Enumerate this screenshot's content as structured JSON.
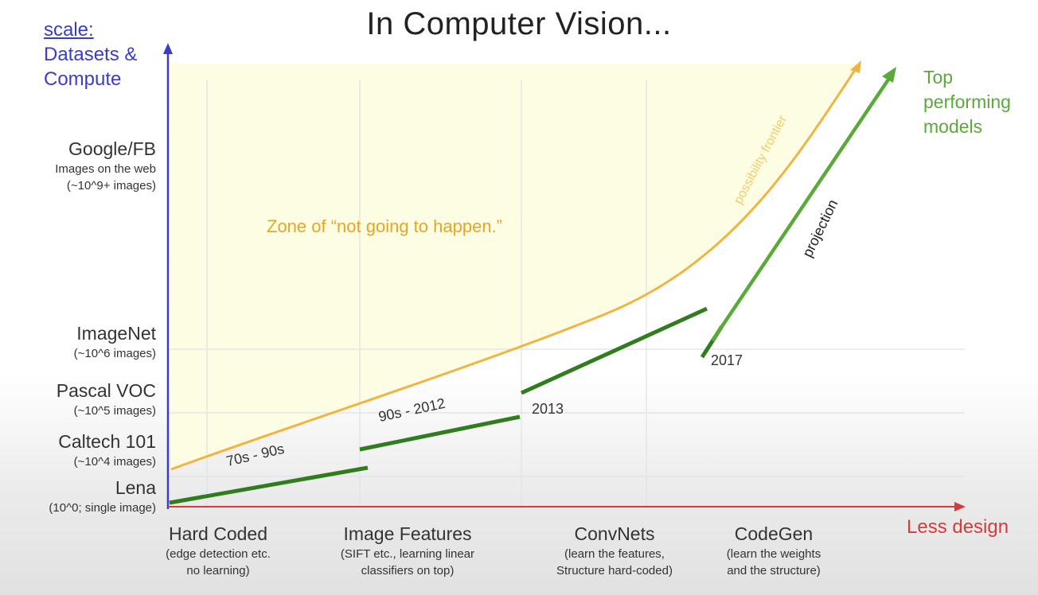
{
  "title": "In Computer Vision...",
  "y_axis": {
    "label_underlined": "scale:",
    "label_lines": [
      "Datasets &",
      "Compute"
    ],
    "ticks": [
      {
        "main": "Google/FB",
        "sub": [
          "Images on the web",
          "(~10^9+ images)"
        ]
      },
      {
        "main": "ImageNet",
        "sub": [
          "(~10^6 images)"
        ]
      },
      {
        "main": "Pascal VOC",
        "sub": [
          "(~10^5 images)"
        ]
      },
      {
        "main": "Caltech 101",
        "sub": [
          "(~10^4 images)"
        ]
      },
      {
        "main": "Lena",
        "sub": [
          "(10^0; single image)"
        ]
      }
    ]
  },
  "x_axis": {
    "label": "Less design",
    "ticks": [
      {
        "main": "Hard Coded",
        "sub": [
          "(edge detection etc.",
          "no learning)"
        ]
      },
      {
        "main": "Image Features",
        "sub": [
          "(SIFT etc., learning linear",
          "classifiers on top)"
        ]
      },
      {
        "main": "ConvNets",
        "sub": [
          "(learn the features,",
          "Structure hard-coded)"
        ]
      },
      {
        "main": "CodeGen",
        "sub": [
          "(learn the weights",
          "and the structure)"
        ]
      }
    ]
  },
  "annotations": {
    "zone": "Zone of “not going to happen.”",
    "frontier": "possibility frontier",
    "projection": "projection",
    "top_models": [
      "Top",
      "performing",
      "models"
    ],
    "era1": "70s - 90s",
    "era2": "90s - 2012",
    "year2013": "2013",
    "year2017": "2017"
  },
  "colors": {
    "y_axis": "#3b3bcc",
    "x_axis": "#d43c3c",
    "frontier": "#f0b441",
    "zone_fill": "#fdfde3",
    "progress": "#2f7d1c",
    "projection": "#5aaa3a"
  }
}
